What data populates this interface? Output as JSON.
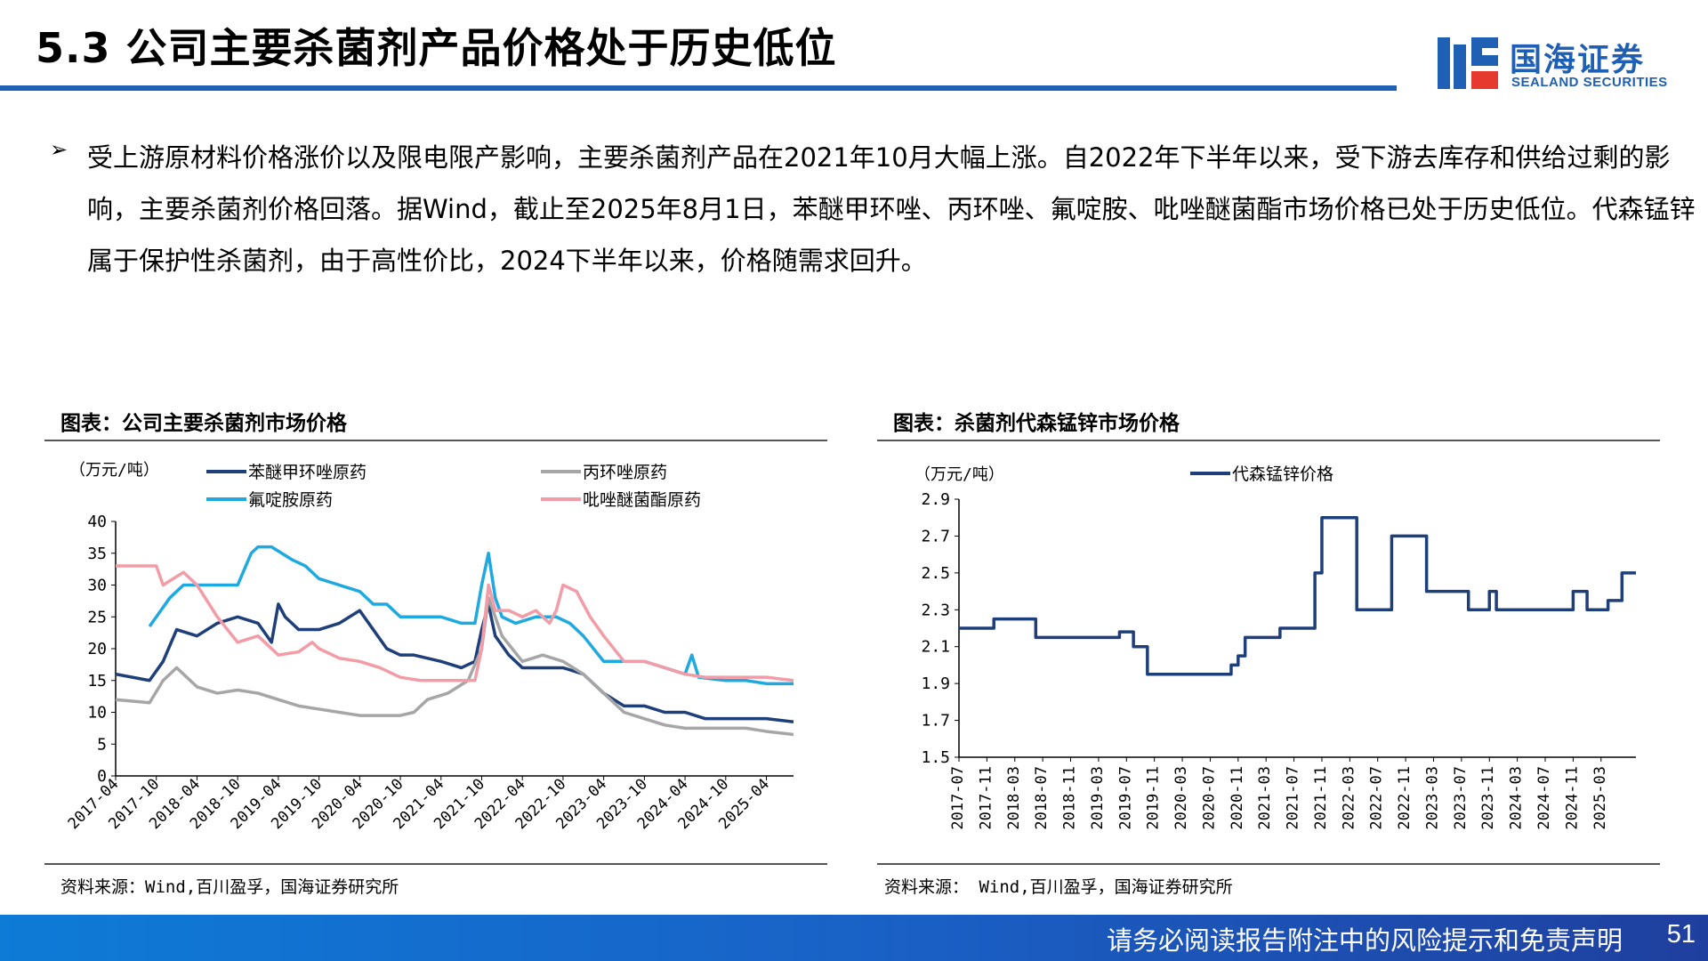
{
  "header": {
    "title": "5.3 公司主要杀菌剂产品价格处于历史低位",
    "logo_cn": "国海证券",
    "logo_en": "SEALAND SECURITIES",
    "accent_color": "#1f5fb4"
  },
  "body": {
    "bullet_text": "受上游原材料价格涨价以及限电限产影响，主要杀菌剂产品在2021年10月大幅上涨。自2022年下半年以来，受下游去库存和供给过剩的影响，主要杀菌剂价格回落。据Wind，截止至2025年8月1日，苯醚甲环唑、丙环唑、氟啶胺、吡唑醚菌酯市场价格已处于历史低位。代森锰锌属于保护性杀菌剂，由于高性价比，2024下半年以来，价格随需求回升。"
  },
  "left_chart": {
    "caption": "图表：公司主要杀菌剂市场价格",
    "source": "资料来源：Wind,百川盈孚，国海证券研究所"
  },
  "right_chart": {
    "caption": "图表：杀菌剂代森锰锌市场价格",
    "source": "资料来源： Wind,百川盈孚，国海证券研究所"
  },
  "footer": {
    "disclaimer": "请务必阅读报告附注中的风险提示和免责声明",
    "page_number": "51"
  },
  "chart_data": [
    {
      "type": "line",
      "title": "图表：公司主要杀菌剂市场价格",
      "ylabel": "（万元/吨）",
      "ylim": [
        0,
        40
      ],
      "yticks": [
        0,
        5,
        10,
        15,
        20,
        25,
        30,
        35,
        40
      ],
      "xlim": [
        "2017-04",
        "2025-08"
      ],
      "xticks": [
        "2017-04",
        "2017-10",
        "2018-04",
        "2018-10",
        "2019-04",
        "2019-10",
        "2020-04",
        "2020-10",
        "2021-04",
        "2021-10",
        "2022-04",
        "2022-10",
        "2023-04",
        "2023-10",
        "2024-04",
        "2024-10",
        "2025-04"
      ],
      "grid": false,
      "legend": "top",
      "series": [
        {
          "name": "苯醚甲环唑原药",
          "color": "#1f3f7a",
          "x": [
            "2017-04",
            "2017-09",
            "2017-11",
            "2018-01",
            "2018-04",
            "2018-07",
            "2018-10",
            "2019-01",
            "2019-03",
            "2019-04",
            "2019-05",
            "2019-07",
            "2019-10",
            "2020-01",
            "2020-04",
            "2020-06",
            "2020-08",
            "2020-10",
            "2020-12",
            "2021-04",
            "2021-07",
            "2021-09",
            "2021-10",
            "2021-11",
            "2021-12",
            "2022-02",
            "2022-04",
            "2022-07",
            "2022-10",
            "2023-01",
            "2023-04",
            "2023-07",
            "2023-10",
            "2024-01",
            "2024-04",
            "2024-07",
            "2024-10",
            "2025-01",
            "2025-04",
            "2025-08"
          ],
          "y": [
            16,
            15,
            18,
            23,
            22,
            24,
            25,
            24,
            21,
            27,
            25,
            23,
            23,
            24,
            26,
            23,
            20,
            19,
            19,
            18,
            17,
            18,
            23,
            27,
            22,
            19,
            17,
            17,
            17,
            16,
            13,
            11,
            11,
            10,
            10,
            9,
            9,
            9,
            9,
            8.5
          ]
        },
        {
          "name": "丙环唑原药",
          "color": "#a6a6a6",
          "x": [
            "2017-04",
            "2017-09",
            "2017-11",
            "2018-01",
            "2018-04",
            "2018-07",
            "2018-10",
            "2019-01",
            "2019-04",
            "2019-07",
            "2019-10",
            "2020-01",
            "2020-04",
            "2020-07",
            "2020-10",
            "2020-12",
            "2021-02",
            "2021-05",
            "2021-08",
            "2021-10",
            "2021-11",
            "2022-01",
            "2022-04",
            "2022-07",
            "2022-10",
            "2023-01",
            "2023-04",
            "2023-07",
            "2023-10",
            "2024-01",
            "2024-04",
            "2024-07",
            "2024-10",
            "2025-01",
            "2025-04",
            "2025-08"
          ],
          "y": [
            12,
            11.5,
            15,
            17,
            14,
            13,
            13.5,
            13,
            12,
            11,
            10.5,
            10,
            9.5,
            9.5,
            9.5,
            10,
            12,
            13,
            15,
            20,
            28,
            22,
            18,
            19,
            18,
            16,
            13,
            10,
            9,
            8,
            7.5,
            7.5,
            7.5,
            7.5,
            7,
            6.5
          ]
        },
        {
          "name": "氟啶胺原药",
          "color": "#1fa9e1",
          "x": [
            "2017-09",
            "2017-10",
            "2017-12",
            "2018-02",
            "2018-04",
            "2018-07",
            "2018-10",
            "2018-12",
            "2019-01",
            "2019-03",
            "2019-06",
            "2019-08",
            "2019-10",
            "2020-01",
            "2020-04",
            "2020-06",
            "2020-08",
            "2020-10",
            "2021-04",
            "2021-07",
            "2021-09",
            "2021-10",
            "2021-11",
            "2021-12",
            "2022-01",
            "2022-03",
            "2022-06",
            "2022-09",
            "2022-11",
            "2023-01",
            "2023-04",
            "2023-07",
            "2023-10",
            "2024-01",
            "2024-04",
            "2024-05",
            "2024-06",
            "2024-10",
            "2025-01",
            "2025-04",
            "2025-08"
          ],
          "y": [
            23.5,
            25,
            28,
            30,
            30,
            30,
            30,
            35,
            36,
            36,
            34,
            33,
            31,
            30,
            29,
            27,
            27,
            25,
            25,
            24,
            24,
            30,
            35,
            28,
            25,
            24,
            25,
            25,
            24,
            22,
            18,
            18,
            18,
            17,
            16,
            19,
            15.5,
            15,
            15,
            14.5,
            14.5
          ]
        },
        {
          "name": "吡唑醚菌酯原药",
          "color": "#f19ca6",
          "x": [
            "2017-04",
            "2017-10",
            "2017-11",
            "2018-02",
            "2018-04",
            "2018-07",
            "2018-10",
            "2019-01",
            "2019-04",
            "2019-07",
            "2019-09",
            "2019-10",
            "2020-01",
            "2020-04",
            "2020-07",
            "2020-10",
            "2021-01",
            "2021-04",
            "2021-07",
            "2021-09",
            "2021-10",
            "2021-11",
            "2021-12",
            "2022-02",
            "2022-04",
            "2022-06",
            "2022-08",
            "2022-09",
            "2022-10",
            "2022-12",
            "2023-02",
            "2023-04",
            "2023-07",
            "2023-10",
            "2024-01",
            "2024-04",
            "2024-07",
            "2024-10",
            "2025-01",
            "2025-04",
            "2025-08"
          ],
          "y": [
            33,
            33,
            30,
            32,
            30,
            25,
            21,
            22,
            19,
            19.5,
            21,
            20,
            18.5,
            18,
            17,
            15.5,
            15,
            15,
            15,
            15,
            20,
            30,
            26,
            26,
            25,
            26,
            24,
            26,
            30,
            29,
            25,
            22,
            18,
            18,
            17,
            16,
            15.5,
            15.5,
            15.5,
            15.5,
            15
          ]
        }
      ]
    },
    {
      "type": "line",
      "title": "图表：杀菌剂代森锰锌市场价格",
      "ylabel": "（万元/吨）",
      "ylim": [
        1.5,
        2.9
      ],
      "yticks": [
        1.5,
        1.7,
        1.9,
        2.1,
        2.3,
        2.5,
        2.7,
        2.9
      ],
      "xlim": [
        "2017-07",
        "2025-08"
      ],
      "xticks": [
        "2017-07",
        "2017-11",
        "2018-03",
        "2018-07",
        "2018-11",
        "2019-03",
        "2019-07",
        "2019-11",
        "2020-03",
        "2020-07",
        "2020-11",
        "2021-03",
        "2021-07",
        "2021-11",
        "2022-03",
        "2022-07",
        "2022-11",
        "2023-03",
        "2023-07",
        "2023-11",
        "2024-03",
        "2024-07",
        "2024-11",
        "2025-03"
      ],
      "grid": false,
      "legend": "top",
      "series": [
        {
          "name": "代森锰锌价格",
          "color": "#1f3f7a",
          "step": true,
          "x": [
            "2017-07",
            "2017-12",
            "2018-06",
            "2019-06",
            "2019-08",
            "2019-10",
            "2020-10",
            "2020-11",
            "2020-12",
            "2021-02",
            "2021-05",
            "2021-10",
            "2021-11",
            "2022-04",
            "2022-09",
            "2022-10",
            "2023-02",
            "2023-03",
            "2023-08",
            "2023-11",
            "2023-12",
            "2024-07",
            "2024-11",
            "2025-01",
            "2025-04",
            "2025-06",
            "2025-08"
          ],
          "y": [
            2.2,
            2.25,
            2.15,
            2.18,
            2.1,
            1.95,
            2.0,
            2.05,
            2.15,
            2.15,
            2.2,
            2.5,
            2.8,
            2.3,
            2.7,
            2.7,
            2.4,
            2.4,
            2.3,
            2.4,
            2.3,
            2.3,
            2.4,
            2.3,
            2.35,
            2.5,
            2.5
          ]
        }
      ]
    }
  ]
}
